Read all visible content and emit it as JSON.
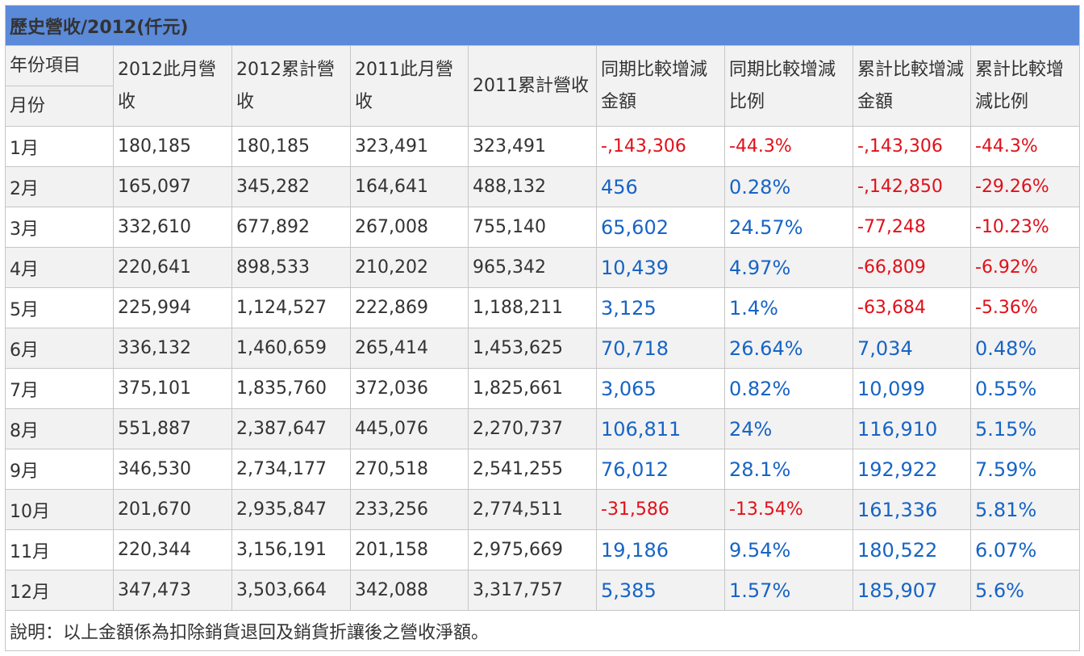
{
  "title": "歷史營收/2012(仟元)",
  "headers": {
    "corner_top": "年份項目",
    "corner_bottom": "月份",
    "cols": [
      "2012此月營收",
      "2012累計營收",
      "2011此月營收",
      "2011累計營收",
      "同期比較增減金額",
      "同期比較增減比例",
      "累計比較增減金額",
      "累計比較增減比例"
    ]
  },
  "rows": [
    {
      "month": "1月",
      "m2012": "180,185",
      "c2012": "180,185",
      "m2011": "323,491",
      "c2011": "323,491",
      "diff": "-,143,306",
      "pct": "-44.3%",
      "cdiff": "-,143,306",
      "cpct": "-44.3%"
    },
    {
      "month": "2月",
      "m2012": "165,097",
      "c2012": "345,282",
      "m2011": "164,641",
      "c2011": "488,132",
      "diff": "456",
      "pct": "0.28%",
      "cdiff": "-,142,850",
      "cpct": "-29.26%"
    },
    {
      "month": "3月",
      "m2012": "332,610",
      "c2012": "677,892",
      "m2011": "267,008",
      "c2011": "755,140",
      "diff": "65,602",
      "pct": "24.57%",
      "cdiff": "-77,248",
      "cpct": "-10.23%"
    },
    {
      "month": "4月",
      "m2012": "220,641",
      "c2012": "898,533",
      "m2011": "210,202",
      "c2011": "965,342",
      "diff": "10,439",
      "pct": "4.97%",
      "cdiff": "-66,809",
      "cpct": "-6.92%"
    },
    {
      "month": "5月",
      "m2012": "225,994",
      "c2012": "1,124,527",
      "m2011": "222,869",
      "c2011": "1,188,211",
      "diff": "3,125",
      "pct": "1.4%",
      "cdiff": "-63,684",
      "cpct": "-5.36%"
    },
    {
      "month": "6月",
      "m2012": "336,132",
      "c2012": "1,460,659",
      "m2011": "265,414",
      "c2011": "1,453,625",
      "diff": "70,718",
      "pct": "26.64%",
      "cdiff": "7,034",
      "cpct": "0.48%"
    },
    {
      "month": "7月",
      "m2012": "375,101",
      "c2012": "1,835,760",
      "m2011": "372,036",
      "c2011": "1,825,661",
      "diff": "3,065",
      "pct": "0.82%",
      "cdiff": "10,099",
      "cpct": "0.55%"
    },
    {
      "month": "8月",
      "m2012": "551,887",
      "c2012": "2,387,647",
      "m2011": "445,076",
      "c2011": "2,270,737",
      "diff": "106,811",
      "pct": "24%",
      "cdiff": "116,910",
      "cpct": "5.15%"
    },
    {
      "month": "9月",
      "m2012": "346,530",
      "c2012": "2,734,177",
      "m2011": "270,518",
      "c2011": "2,541,255",
      "diff": "76,012",
      "pct": "28.1%",
      "cdiff": "192,922",
      "cpct": "7.59%"
    },
    {
      "month": "10月",
      "m2012": "201,670",
      "c2012": "2,935,847",
      "m2011": "233,256",
      "c2011": "2,774,511",
      "diff": "-31,586",
      "pct": "-13.54%",
      "cdiff": "161,336",
      "cpct": "5.81%"
    },
    {
      "month": "11月",
      "m2012": "220,344",
      "c2012": "3,156,191",
      "m2011": "201,158",
      "c2011": "2,975,669",
      "diff": "19,186",
      "pct": "9.54%",
      "cdiff": "180,522",
      "cpct": "6.07%"
    },
    {
      "month": "12月",
      "m2012": "347,473",
      "c2012": "3,503,664",
      "m2011": "342,088",
      "c2011": "3,317,757",
      "diff": "5,385",
      "pct": "1.57%",
      "cdiff": "185,907",
      "cpct": "5.6%"
    }
  ],
  "note": "說明：以上金額係為扣除銷貨退回及銷貨折讓後之營收淨額。",
  "colors": {
    "header_bg": "#5b8ad9",
    "positive": "#1764c5",
    "negative": "#e0101a",
    "stripe": "#f2f2f2",
    "border": "#c6c6c6"
  }
}
